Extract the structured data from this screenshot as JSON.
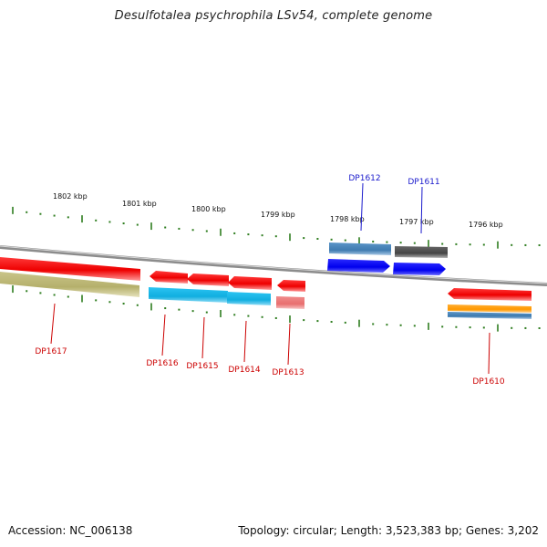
{
  "title": "Desulfotalea psychrophila LSv54, complete genome",
  "footer": {
    "accession": "Accession: NC_006138",
    "summary": "Topology: circular; Length: 3,523,383 bp; Genes: 3,202"
  },
  "scale_labels": [
    "1802 kbp",
    "1801 kbp",
    "1800 kbp",
    "1799 kbp",
    "1798 kbp",
    "1797 kbp",
    "1796 kbp"
  ],
  "gene_labels_forward": [
    {
      "id": "DP1612",
      "color": "#1a1acc"
    },
    {
      "id": "DP1611",
      "color": "#1a1acc"
    }
  ],
  "gene_labels_reverse": [
    {
      "id": "DP1617",
      "color": "#cc0000"
    },
    {
      "id": "DP1616",
      "color": "#cc0000"
    },
    {
      "id": "DP1615",
      "color": "#cc0000"
    },
    {
      "id": "DP1614",
      "color": "#cc0000"
    },
    {
      "id": "DP1613",
      "color": "#cc0000"
    },
    {
      "id": "DP1610",
      "color": "#cc0000"
    }
  ],
  "colors": {
    "backbone": "#8c8c8c",
    "tick": "#2e7d1f",
    "gene_reverse": "#ee0000",
    "gene_forward": "#0000ee",
    "cds_blue": "#4a86b8",
    "cds_gray": "#555555",
    "cds_cyan": "#1cb8e8",
    "cds_olive": "#bdb877",
    "cds_pink": "#ee7c7c",
    "cds_orange": "#ff9900"
  }
}
